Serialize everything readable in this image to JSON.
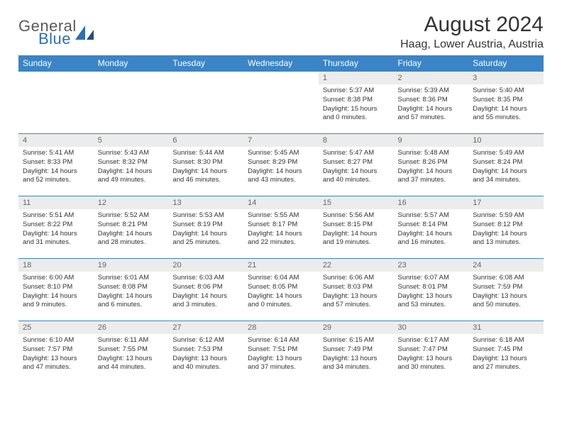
{
  "logo": {
    "general": "General",
    "blue": "Blue"
  },
  "title": "August 2024",
  "location": "Haag, Lower Austria, Austria",
  "colors": {
    "header_bg": "#3b85c6",
    "header_fg": "#ffffff",
    "daynum_bg": "#ececec",
    "daynum_fg": "#666666",
    "row_border": "#3b85c6",
    "logo_gray": "#5a5a5a",
    "logo_blue": "#2f6fb0",
    "text": "#333333"
  },
  "weekdays": [
    "Sunday",
    "Monday",
    "Tuesday",
    "Wednesday",
    "Thursday",
    "Friday",
    "Saturday"
  ],
  "weeks": [
    [
      {
        "n": "",
        "l1": "",
        "l2": "",
        "l3": "",
        "l4": ""
      },
      {
        "n": "",
        "l1": "",
        "l2": "",
        "l3": "",
        "l4": ""
      },
      {
        "n": "",
        "l1": "",
        "l2": "",
        "l3": "",
        "l4": ""
      },
      {
        "n": "",
        "l1": "",
        "l2": "",
        "l3": "",
        "l4": ""
      },
      {
        "n": "1",
        "l1": "Sunrise: 5:37 AM",
        "l2": "Sunset: 8:38 PM",
        "l3": "Daylight: 15 hours",
        "l4": "and 0 minutes."
      },
      {
        "n": "2",
        "l1": "Sunrise: 5:39 AM",
        "l2": "Sunset: 8:36 PM",
        "l3": "Daylight: 14 hours",
        "l4": "and 57 minutes."
      },
      {
        "n": "3",
        "l1": "Sunrise: 5:40 AM",
        "l2": "Sunset: 8:35 PM",
        "l3": "Daylight: 14 hours",
        "l4": "and 55 minutes."
      }
    ],
    [
      {
        "n": "4",
        "l1": "Sunrise: 5:41 AM",
        "l2": "Sunset: 8:33 PM",
        "l3": "Daylight: 14 hours",
        "l4": "and 52 minutes."
      },
      {
        "n": "5",
        "l1": "Sunrise: 5:43 AM",
        "l2": "Sunset: 8:32 PM",
        "l3": "Daylight: 14 hours",
        "l4": "and 49 minutes."
      },
      {
        "n": "6",
        "l1": "Sunrise: 5:44 AM",
        "l2": "Sunset: 8:30 PM",
        "l3": "Daylight: 14 hours",
        "l4": "and 46 minutes."
      },
      {
        "n": "7",
        "l1": "Sunrise: 5:45 AM",
        "l2": "Sunset: 8:29 PM",
        "l3": "Daylight: 14 hours",
        "l4": "and 43 minutes."
      },
      {
        "n": "8",
        "l1": "Sunrise: 5:47 AM",
        "l2": "Sunset: 8:27 PM",
        "l3": "Daylight: 14 hours",
        "l4": "and 40 minutes."
      },
      {
        "n": "9",
        "l1": "Sunrise: 5:48 AM",
        "l2": "Sunset: 8:26 PM",
        "l3": "Daylight: 14 hours",
        "l4": "and 37 minutes."
      },
      {
        "n": "10",
        "l1": "Sunrise: 5:49 AM",
        "l2": "Sunset: 8:24 PM",
        "l3": "Daylight: 14 hours",
        "l4": "and 34 minutes."
      }
    ],
    [
      {
        "n": "11",
        "l1": "Sunrise: 5:51 AM",
        "l2": "Sunset: 8:22 PM",
        "l3": "Daylight: 14 hours",
        "l4": "and 31 minutes."
      },
      {
        "n": "12",
        "l1": "Sunrise: 5:52 AM",
        "l2": "Sunset: 8:21 PM",
        "l3": "Daylight: 14 hours",
        "l4": "and 28 minutes."
      },
      {
        "n": "13",
        "l1": "Sunrise: 5:53 AM",
        "l2": "Sunset: 8:19 PM",
        "l3": "Daylight: 14 hours",
        "l4": "and 25 minutes."
      },
      {
        "n": "14",
        "l1": "Sunrise: 5:55 AM",
        "l2": "Sunset: 8:17 PM",
        "l3": "Daylight: 14 hours",
        "l4": "and 22 minutes."
      },
      {
        "n": "15",
        "l1": "Sunrise: 5:56 AM",
        "l2": "Sunset: 8:15 PM",
        "l3": "Daylight: 14 hours",
        "l4": "and 19 minutes."
      },
      {
        "n": "16",
        "l1": "Sunrise: 5:57 AM",
        "l2": "Sunset: 8:14 PM",
        "l3": "Daylight: 14 hours",
        "l4": "and 16 minutes."
      },
      {
        "n": "17",
        "l1": "Sunrise: 5:59 AM",
        "l2": "Sunset: 8:12 PM",
        "l3": "Daylight: 14 hours",
        "l4": "and 13 minutes."
      }
    ],
    [
      {
        "n": "18",
        "l1": "Sunrise: 6:00 AM",
        "l2": "Sunset: 8:10 PM",
        "l3": "Daylight: 14 hours",
        "l4": "and 9 minutes."
      },
      {
        "n": "19",
        "l1": "Sunrise: 6:01 AM",
        "l2": "Sunset: 8:08 PM",
        "l3": "Daylight: 14 hours",
        "l4": "and 6 minutes."
      },
      {
        "n": "20",
        "l1": "Sunrise: 6:03 AM",
        "l2": "Sunset: 8:06 PM",
        "l3": "Daylight: 14 hours",
        "l4": "and 3 minutes."
      },
      {
        "n": "21",
        "l1": "Sunrise: 6:04 AM",
        "l2": "Sunset: 8:05 PM",
        "l3": "Daylight: 14 hours",
        "l4": "and 0 minutes."
      },
      {
        "n": "22",
        "l1": "Sunrise: 6:06 AM",
        "l2": "Sunset: 8:03 PM",
        "l3": "Daylight: 13 hours",
        "l4": "and 57 minutes."
      },
      {
        "n": "23",
        "l1": "Sunrise: 6:07 AM",
        "l2": "Sunset: 8:01 PM",
        "l3": "Daylight: 13 hours",
        "l4": "and 53 minutes."
      },
      {
        "n": "24",
        "l1": "Sunrise: 6:08 AM",
        "l2": "Sunset: 7:59 PM",
        "l3": "Daylight: 13 hours",
        "l4": "and 50 minutes."
      }
    ],
    [
      {
        "n": "25",
        "l1": "Sunrise: 6:10 AM",
        "l2": "Sunset: 7:57 PM",
        "l3": "Daylight: 13 hours",
        "l4": "and 47 minutes."
      },
      {
        "n": "26",
        "l1": "Sunrise: 6:11 AM",
        "l2": "Sunset: 7:55 PM",
        "l3": "Daylight: 13 hours",
        "l4": "and 44 minutes."
      },
      {
        "n": "27",
        "l1": "Sunrise: 6:12 AM",
        "l2": "Sunset: 7:53 PM",
        "l3": "Daylight: 13 hours",
        "l4": "and 40 minutes."
      },
      {
        "n": "28",
        "l1": "Sunrise: 6:14 AM",
        "l2": "Sunset: 7:51 PM",
        "l3": "Daylight: 13 hours",
        "l4": "and 37 minutes."
      },
      {
        "n": "29",
        "l1": "Sunrise: 6:15 AM",
        "l2": "Sunset: 7:49 PM",
        "l3": "Daylight: 13 hours",
        "l4": "and 34 minutes."
      },
      {
        "n": "30",
        "l1": "Sunrise: 6:17 AM",
        "l2": "Sunset: 7:47 PM",
        "l3": "Daylight: 13 hours",
        "l4": "and 30 minutes."
      },
      {
        "n": "31",
        "l1": "Sunrise: 6:18 AM",
        "l2": "Sunset: 7:45 PM",
        "l3": "Daylight: 13 hours",
        "l4": "and 27 minutes."
      }
    ]
  ]
}
